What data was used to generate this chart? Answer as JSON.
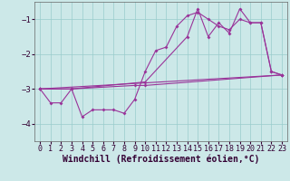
{
  "background_color": "#cce8e8",
  "grid_color": "#99cccc",
  "line_color": "#993399",
  "xlabel": "Windchill (Refroidissement éolien,°C)",
  "xlabel_fontsize": 7,
  "tick_fontsize": 6,
  "ylim": [
    -4.5,
    -0.5
  ],
  "xlim": [
    -0.5,
    23.5
  ],
  "yticks": [
    -4,
    -3,
    -2,
    -1
  ],
  "xticks": [
    0,
    1,
    2,
    3,
    4,
    5,
    6,
    7,
    8,
    9,
    10,
    11,
    12,
    13,
    14,
    15,
    16,
    17,
    18,
    19,
    20,
    21,
    22,
    23
  ],
  "series": [
    {
      "x": [
        0,
        1,
        2,
        3,
        4,
        5,
        6,
        7,
        8,
        9,
        10,
        11,
        12,
        13,
        14,
        15,
        16,
        17,
        18,
        19,
        20,
        21,
        22,
        23
      ],
      "y": [
        -3.0,
        -3.4,
        -3.4,
        -3.0,
        -3.8,
        -3.6,
        -3.6,
        -3.6,
        -3.7,
        -3.3,
        -2.5,
        -1.9,
        -1.8,
        -1.2,
        -0.9,
        -0.8,
        -1.0,
        -1.2,
        -1.3,
        -1.0,
        -1.1,
        -1.1,
        -2.5,
        -2.6
      ]
    },
    {
      "x": [
        0,
        3,
        10,
        14,
        15,
        16,
        17,
        18,
        19,
        20,
        21,
        22,
        23
      ],
      "y": [
        -3.0,
        -3.0,
        -2.8,
        -1.5,
        -0.7,
        -1.5,
        -1.1,
        -1.4,
        -0.7,
        -1.1,
        -1.1,
        -2.5,
        -2.6
      ]
    },
    {
      "x": [
        0,
        23
      ],
      "y": [
        -3.0,
        -2.6
      ]
    },
    {
      "x": [
        0,
        3,
        9,
        10,
        23
      ],
      "y": [
        -3.0,
        -3.0,
        -2.9,
        -2.9,
        -2.6
      ]
    }
  ],
  "figsize": [
    3.2,
    2.0
  ],
  "dpi": 100
}
